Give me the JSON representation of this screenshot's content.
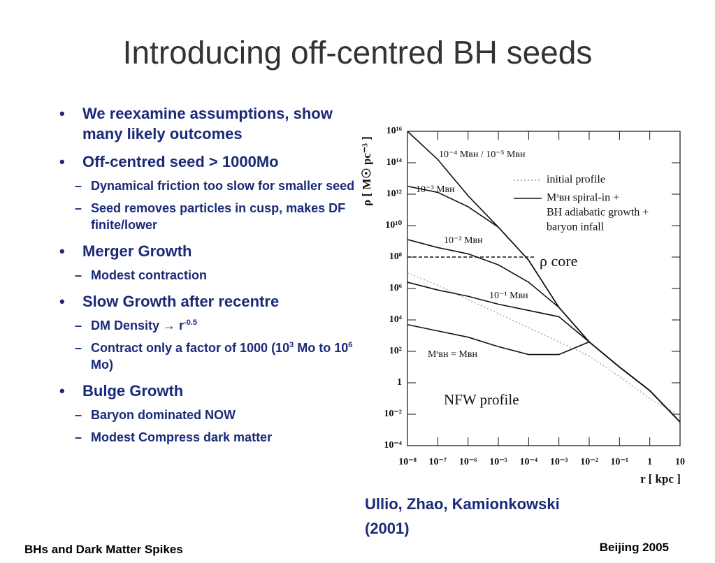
{
  "title": "Introducing off-centred BH seeds",
  "bullets": [
    {
      "parts": [
        "We reexamine assumptions, show many likely outcomes"
      ],
      "sub": []
    },
    {
      "parts": [
        "Off-centred seed > 1000Mo"
      ],
      "sub": [
        {
          "parts": [
            "Dynamical friction too slow for smaller seed"
          ]
        },
        {
          "parts": [
            "Seed removes particles in cusp,  makes DF finite/lower"
          ]
        }
      ]
    },
    {
      "parts": [
        "Merger Growth"
      ],
      "sub": [
        {
          "parts": [
            "Modest contraction"
          ]
        }
      ]
    },
    {
      "parts": [
        "Slow Growth after recentre"
      ],
      "sub": [
        {
          "parts": [
            "DM Density → r",
            "-0.5"
          ]
        },
        {
          "parts": [
            "Contract only a factor of 1000 (10",
            "3",
            " Mo to 10",
            "6",
            " Mo)"
          ]
        }
      ]
    },
    {
      "parts": [
        "Bulge Growth"
      ],
      "sub": [
        {
          "parts": [
            "Baryon dominated NOW"
          ]
        },
        {
          "parts": [
            "Modest Compress dark matter"
          ]
        }
      ]
    }
  ],
  "caption": [
    "Ullio, Zhao, Kamionkowski",
    "(2001)"
  ],
  "footer": {
    "left": "BHs and Dark Matter Spikes",
    "right": "Beijing 2005"
  },
  "chart_data": {
    "type": "line",
    "x_label": "r [ kpc ]",
    "y_label": "ρ [ M☉ pc⁻³ ]",
    "log_x": true,
    "log_y": true,
    "xlim": [
      1e-08,
      10
    ],
    "ylim": [
      0.0001,
      1e+16
    ],
    "xticks": [
      {
        "value": 1e-08,
        "label": "10⁻⁸"
      },
      {
        "value": 1e-07,
        "label": "10⁻⁷"
      },
      {
        "value": 1e-06,
        "label": "10⁻⁶"
      },
      {
        "value": 1e-05,
        "label": "10⁻⁵"
      },
      {
        "value": 0.0001,
        "label": "10⁻⁴"
      },
      {
        "value": 0.001,
        "label": "10⁻³"
      },
      {
        "value": 0.01,
        "label": "10⁻²"
      },
      {
        "value": 0.1,
        "label": "10⁻¹"
      },
      1,
      10
    ],
    "yticks": [
      {
        "value": 1e+16,
        "label": "10¹⁶"
      },
      {
        "value": 100000000000000.0,
        "label": "10¹⁴"
      },
      {
        "value": 1000000000000.0,
        "label": "10¹²"
      },
      {
        "value": 10000000000.0,
        "label": "10¹⁰"
      },
      {
        "value": 100000000.0,
        "label": "10⁸"
      },
      {
        "value": 1000000.0,
        "label": "10⁶"
      },
      {
        "value": 10000.0,
        "label": "10⁴"
      },
      {
        "value": 100,
        "label": "10²"
      },
      1,
      {
        "value": 0.01,
        "label": "10⁻²"
      },
      {
        "value": 0.0001,
        "label": "10⁻⁴"
      }
    ],
    "x": [
      1e-08,
      1e-07,
      1e-06,
      1e-05,
      0.0001,
      0.001,
      0.01,
      0.1,
      1,
      10
    ],
    "series": [
      {
        "name": "initial profile",
        "color": "#9a9a9a",
        "line_style": "dotted",
        "values": [
          10000000.0,
          1600000.0,
          200000.0,
          25000.0,
          3200.0,
          400,
          50,
          2.5,
          0.1,
          0.008
        ]
      },
      {
        "name": "10⁻⁴ Mʙʜ / 10⁻⁵ Mʙʜ",
        "color": "#111111",
        "line_style": "solid",
        "values": [
          1e+16,
          160000000000000.0,
          800000000000.0,
          8000000000.0,
          63000000.0,
          63000.0,
          400,
          10,
          0.32,
          0.0032
        ]
      },
      {
        "name": "10⁻³ Mʙʜ",
        "color": "#111111",
        "line_style": "solid",
        "values": [
          3200000000000.0,
          1300000000000.0,
          160000000000.0,
          8000000000.0,
          63000000.0,
          63000.0,
          400,
          10,
          0.32,
          0.0032
        ]
      },
      {
        "name": "10⁻² Mʙʜ",
        "color": "#111111",
        "line_style": "solid",
        "values": [
          1300000000.0,
          400000000.0,
          160000000.0,
          32000000.0,
          2500000.0,
          63000.0,
          400,
          10,
          0.32,
          0.0032
        ]
      },
      {
        "name": "10⁻¹ Mʙʜ",
        "color": "#111111",
        "line_style": "solid",
        "values": [
          2500000.0,
          800000.0,
          320000.0,
          100000.0,
          40000.0,
          16000.0,
          400,
          10,
          0.32,
          0.0032
        ]
      },
      {
        "name": "Mˢʙʜ = Mʙʜ",
        "color": "#111111",
        "line_style": "solid",
        "values": [
          5000.0,
          2000.0,
          800,
          200,
          63,
          63,
          400,
          10,
          0.32,
          0.0032
        ]
      }
    ],
    "legend": [
      {
        "lines": [
          "initial profile"
        ],
        "line_style": "dotted",
        "color": "#9a9a9a"
      },
      {
        "lines": [
          "Mˢʙʜ  spiral-in +",
          "BH adiabatic growth +",
          "baryon infall"
        ],
        "line_style": "solid",
        "color": "#111111"
      }
    ],
    "core_line": {
      "label": "ρ core",
      "y": 100000000.0,
      "x": [
        1e-08,
        0.00016
      ]
    },
    "annotation": "NFW profile"
  }
}
